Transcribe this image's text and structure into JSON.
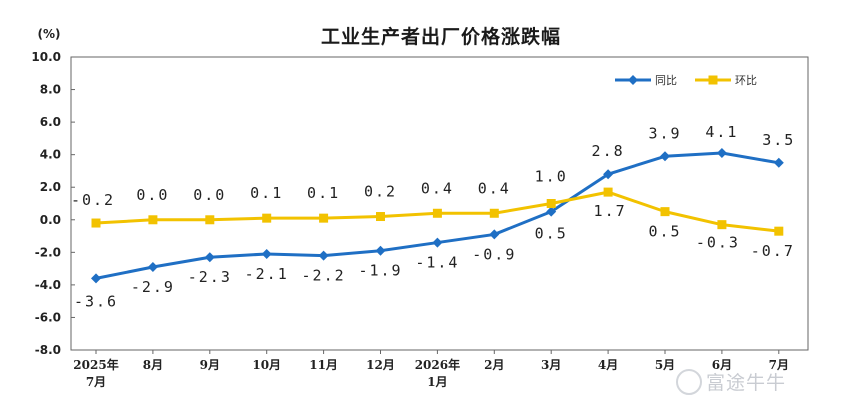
{
  "chart_data": {
    "type": "line",
    "title": "工业生产者出厂价格涨跌幅",
    "ylabel": "(%)",
    "xlabel": "",
    "ylim": [
      -8,
      10
    ],
    "yticks": [
      "10.0",
      "8.0",
      "6.0",
      "4.0",
      "2.0",
      "0.0",
      "-2.0",
      "-4.0",
      "-6.0",
      "-8.0"
    ],
    "ytick_values": [
      10,
      8,
      6,
      4,
      2,
      0,
      -2,
      -4,
      -6,
      -8
    ],
    "categories": [
      [
        "2025年",
        "7月"
      ],
      [
        "8月"
      ],
      [
        "9月"
      ],
      [
        "10月"
      ],
      [
        "11月"
      ],
      [
        "12月"
      ],
      [
        "2026年",
        "1月"
      ],
      [
        "2月"
      ],
      [
        "3月"
      ],
      [
        "4月"
      ],
      [
        "5月"
      ],
      [
        "6月"
      ],
      [
        "7月"
      ]
    ],
    "grid": false,
    "legend": "top-right",
    "series": [
      {
        "name": "同比",
        "color": "#1f6fc4",
        "marker": "diamond",
        "values": [
          -3.6,
          -2.9,
          -2.3,
          -2.1,
          -2.2,
          -1.9,
          -1.4,
          -0.9,
          0.5,
          2.8,
          3.9,
          4.1,
          3.5
        ],
        "labels": [
          "-3.6",
          "-2.9",
          "-2.3",
          "-2.1",
          "-2.2",
          "-1.9",
          "-1.4",
          "-0.9",
          "0.5",
          "2.8",
          "3.9",
          "4.1",
          "3.5"
        ]
      },
      {
        "name": "环比",
        "color": "#f2c200",
        "marker": "square",
        "values": [
          -0.2,
          0.0,
          0.0,
          0.1,
          0.1,
          0.2,
          0.4,
          0.4,
          1.0,
          1.7,
          0.5,
          -0.3,
          -0.7
        ],
        "labels": [
          "-0.2",
          "0.0",
          "0.0",
          "0.1",
          "0.1",
          "0.2",
          "0.4",
          "0.4",
          "1.0",
          "1.7",
          "0.5",
          "-0.3",
          "-0.7"
        ]
      }
    ]
  },
  "watermark": {
    "text": "富途牛牛",
    "icon": "futu-logo-icon"
  }
}
